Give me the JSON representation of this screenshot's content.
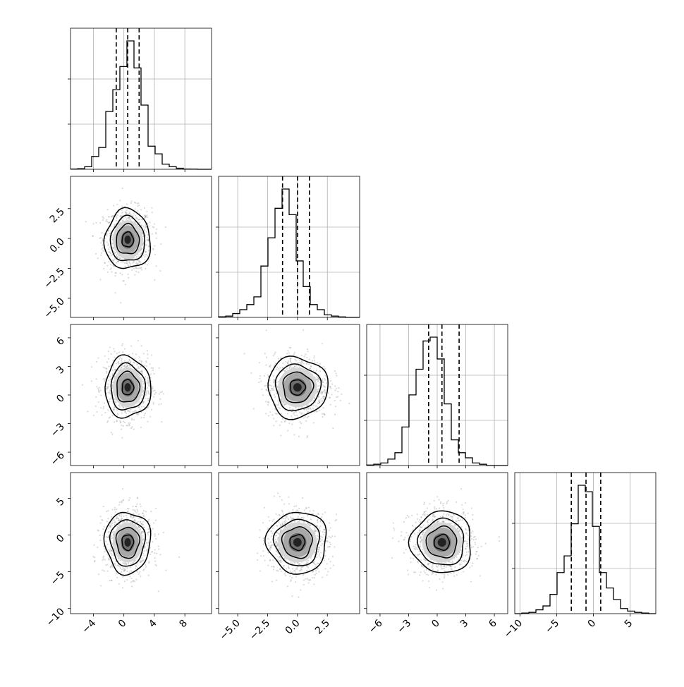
{
  "chart_data": {
    "type": "corner",
    "grid": true,
    "colors": {
      "line": "#000000",
      "grid": "#b0b0b0",
      "scatter": "#7a7a7a",
      "background": "#ffffff"
    },
    "params": [
      {
        "range": [
          -7.0,
          11.5
        ],
        "ticks": [
          -4,
          0,
          4,
          8
        ],
        "tick_labels": [
          "−4",
          "0",
          "4",
          "8"
        ]
      },
      {
        "range": [
          -6.6,
          5.2
        ],
        "ticks": [
          -5.0,
          -2.5,
          0.0,
          2.5
        ],
        "tick_labels": [
          "−5.0",
          "−2.5",
          "0.0",
          "2.5"
        ]
      },
      {
        "range": [
          -7.4,
          7.4
        ],
        "ticks": [
          -6,
          -3,
          0,
          3,
          6
        ],
        "tick_labels": [
          "−6",
          "−3",
          "0",
          "3",
          "6"
        ]
      },
      {
        "range": [
          -10.7,
          8.5
        ],
        "ticks": [
          -10,
          -5,
          0,
          5
        ],
        "tick_labels": [
          "−10",
          "−5",
          "0",
          "5"
        ]
      }
    ],
    "histograms": [
      {
        "param": 0,
        "quantiles": [
          -1.0,
          0.5,
          2.0
        ],
        "values": [
          0.002,
          0.005,
          0.02,
          0.1,
          0.17,
          0.45,
          0.62,
          0.8,
          1.0,
          0.79,
          0.5,
          0.18,
          0.12,
          0.04,
          0.02,
          0.008,
          0.002,
          0.001,
          0,
          0
        ]
      },
      {
        "param": 1,
        "quantiles": [
          -1.25,
          0.0,
          1.0
        ],
        "values": [
          0.005,
          0.01,
          0.03,
          0.06,
          0.1,
          0.16,
          0.4,
          0.62,
          0.85,
          1.0,
          0.8,
          0.44,
          0.24,
          0.1,
          0.06,
          0.02,
          0.01,
          0.004,
          0,
          0
        ]
      },
      {
        "param": 2,
        "quantiles": [
          -0.9,
          0.5,
          2.3
        ],
        "values": [
          0.004,
          0.01,
          0.02,
          0.05,
          0.1,
          0.3,
          0.55,
          0.75,
          0.97,
          1.0,
          0.83,
          0.48,
          0.2,
          0.1,
          0.06,
          0.02,
          0.01,
          0,
          0,
          0
        ]
      },
      {
        "param": 3,
        "quantiles": [
          -3.0,
          -1.0,
          1.0
        ],
        "values": [
          0,
          0.005,
          0.01,
          0.03,
          0.06,
          0.15,
          0.32,
          0.45,
          0.7,
          1.0,
          0.95,
          0.68,
          0.32,
          0.2,
          0.11,
          0.04,
          0.02,
          0.01,
          0.005,
          0
        ]
      }
    ],
    "pairs": [
      {
        "row": 1,
        "col": 0,
        "center": [
          0.5,
          -0.1
        ],
        "sd": [
          1.5,
          1.25
        ]
      },
      {
        "row": 2,
        "col": 0,
        "center": [
          0.5,
          0.8
        ],
        "sd": [
          1.5,
          1.6
        ]
      },
      {
        "row": 2,
        "col": 1,
        "center": [
          0.0,
          0.8
        ],
        "sd": [
          1.25,
          1.6
        ]
      },
      {
        "row": 3,
        "col": 0,
        "center": [
          0.5,
          -1.0
        ],
        "sd": [
          1.5,
          2.1
        ]
      },
      {
        "row": 3,
        "col": 1,
        "center": [
          0.0,
          -1.0
        ],
        "sd": [
          1.25,
          2.1
        ]
      },
      {
        "row": 3,
        "col": 2,
        "center": [
          0.5,
          -1.0
        ],
        "sd": [
          1.6,
          2.1
        ]
      }
    ],
    "contour_levels": [
      0.5,
      1.0,
      1.5,
      2.0
    ]
  }
}
